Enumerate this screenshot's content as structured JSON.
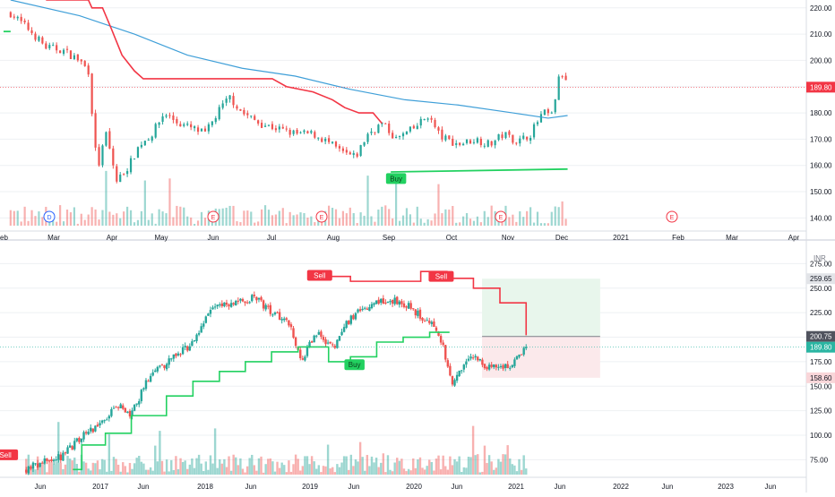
{
  "colors": {
    "up": "#26a69a",
    "down": "#ef5350",
    "stop_sell": "#f23645",
    "stop_buy": "#22d160",
    "ma": "#3f9fd8",
    "last_price": "#f23645",
    "badge_buy": "#22d160",
    "badge_sell": "#f23645",
    "grid": "#eef0f3",
    "axis_text": "#131722",
    "divider": "#d9dce3",
    "target_zone": "#e8f6ec",
    "stop_zone": "#fbe9eb",
    "entry_line": "#7a7d86",
    "target_badge": "#e2e4e8",
    "stop_badge": "#f9d6d9",
    "entry_badge": "#50535e"
  },
  "chart_data": [
    {
      "type": "candlestick",
      "pane": "top",
      "interval": "daily",
      "x_tick_labels": [
        "eb",
        "Mar",
        "Apr",
        "May",
        "Jun",
        "Jul",
        "Aug",
        "Sep",
        "Oct",
        "Nov",
        "Dec",
        "2021",
        "Feb",
        "Mar",
        "Apr"
      ],
      "y_tick_labels": [
        "220.00",
        "210.00",
        "200.00",
        "190.00",
        "180.00",
        "170.00",
        "160.00",
        "150.00",
        "140.00"
      ],
      "ylim": [
        135,
        223
      ],
      "last_price": "189.80",
      "close_path": [
        [
          "2020-02-05",
          218
        ],
        [
          "2020-02-15",
          212
        ],
        [
          "2020-02-25",
          205
        ],
        [
          "2020-03-05",
          204
        ],
        [
          "2020-03-15",
          200
        ],
        [
          "2020-03-20",
          196
        ],
        [
          "2020-03-25",
          158
        ],
        [
          "2020-03-30",
          172
        ],
        [
          "2020-04-05",
          154
        ],
        [
          "2020-04-12",
          160
        ],
        [
          "2020-04-18",
          168
        ],
        [
          "2020-04-25",
          172
        ],
        [
          "2020-05-02",
          180
        ],
        [
          "2020-05-10",
          176
        ],
        [
          "2020-05-18",
          174
        ],
        [
          "2020-05-25",
          172
        ],
        [
          "2020-06-02",
          181
        ],
        [
          "2020-06-08",
          186
        ],
        [
          "2020-06-15",
          180
        ],
        [
          "2020-06-25",
          176
        ],
        [
          "2020-07-05",
          174
        ],
        [
          "2020-07-15",
          172
        ],
        [
          "2020-07-25",
          172
        ],
        [
          "2020-08-02",
          169
        ],
        [
          "2020-08-10",
          165
        ],
        [
          "2020-08-18",
          163
        ],
        [
          "2020-08-25",
          172
        ],
        [
          "2020-09-02",
          176
        ],
        [
          "2020-09-10",
          170
        ],
        [
          "2020-09-20",
          174
        ],
        [
          "2020-09-28",
          179
        ],
        [
          "2020-10-05",
          171
        ],
        [
          "2020-10-15",
          168
        ],
        [
          "2020-10-25",
          170
        ],
        [
          "2020-11-02",
          168
        ],
        [
          "2020-11-10",
          172
        ],
        [
          "2020-11-18",
          169
        ],
        [
          "2020-11-25",
          172
        ],
        [
          "2020-12-02",
          180
        ],
        [
          "2020-12-07",
          179
        ],
        [
          "2020-12-12",
          196
        ],
        [
          "2020-12-16",
          190
        ]
      ],
      "moving_average": [
        [
          "2020-02-05",
          223
        ],
        [
          "2020-03-15",
          217
        ],
        [
          "2020-04-15",
          210
        ],
        [
          "2020-05-15",
          202
        ],
        [
          "2020-06-15",
          197
        ],
        [
          "2020-07-15",
          194
        ],
        [
          "2020-08-15",
          189
        ],
        [
          "2020-09-15",
          185
        ],
        [
          "2020-10-15",
          183
        ],
        [
          "2020-11-15",
          180
        ],
        [
          "2020-12-05",
          178
        ],
        [
          "2020-12-16",
          179
        ]
      ],
      "trailing_stop_sell": [
        [
          "2020-02-25",
          223
        ],
        [
          "2020-03-20",
          223
        ],
        [
          "2020-03-22",
          220
        ],
        [
          "2020-03-28",
          220
        ],
        [
          "2020-04-02",
          212
        ],
        [
          "2020-04-08",
          202
        ],
        [
          "2020-04-15",
          196
        ],
        [
          "2020-04-20",
          193
        ],
        [
          "2020-06-15",
          193
        ],
        [
          "2020-07-02",
          193
        ],
        [
          "2020-07-10",
          190
        ],
        [
          "2020-07-25",
          188
        ],
        [
          "2020-08-05",
          185
        ],
        [
          "2020-08-12",
          182
        ],
        [
          "2020-08-20",
          180
        ],
        [
          "2020-08-28",
          180
        ],
        [
          "2020-09-02",
          176
        ]
      ],
      "trailing_stop_buy": [
        [
          "2020-02-01",
          211
        ],
        [
          "2020-02-05",
          211
        ],
        [
          "2020-09-07",
          157.5
        ],
        [
          "2020-12-16",
          158.6
        ]
      ],
      "signals": [
        {
          "date": "2020-09-10",
          "value": 155,
          "label": "Buy"
        }
      ],
      "events": [
        "D",
        "E",
        "E",
        "E",
        "E",
        "E"
      ]
    },
    {
      "type": "candlestick",
      "pane": "bottom",
      "interval": "weekly",
      "x_tick_labels": [
        "Jun",
        "2017",
        "Jun",
        "2018",
        "Jun",
        "2019",
        "Jun",
        "2020",
        "Jun",
        "2021",
        "Jun",
        "2022",
        "Jun",
        "2023",
        "Jun"
      ],
      "y_tick_labels": [
        "275.00",
        "250.00",
        "225.00",
        "200.00",
        "175.00",
        "150.00",
        "125.00",
        "100.00",
        "75.00"
      ],
      "currency": "INR",
      "ylim": [
        58,
        290
      ],
      "last_price": "189.80",
      "close_path": [
        [
          "2016-03-01",
          66
        ],
        [
          "2016-07-01",
          78
        ],
        [
          "2016-09-01",
          96
        ],
        [
          "2016-11-01",
          110
        ],
        [
          "2017-01-15",
          130
        ],
        [
          "2017-03-01",
          120
        ],
        [
          "2017-05-01",
          160
        ],
        [
          "2017-08-01",
          180
        ],
        [
          "2017-10-01",
          195
        ],
        [
          "2017-12-01",
          230
        ],
        [
          "2018-03-01",
          236
        ],
        [
          "2018-05-01",
          240
        ],
        [
          "2018-07-01",
          225
        ],
        [
          "2018-09-01",
          215
        ],
        [
          "2018-10-15",
          175
        ],
        [
          "2018-12-01",
          205
        ],
        [
          "2019-02-01",
          190
        ],
        [
          "2019-04-01",
          220
        ],
        [
          "2019-06-01",
          232
        ],
        [
          "2019-08-01",
          238
        ],
        [
          "2019-10-01",
          235
        ],
        [
          "2019-12-01",
          222
        ],
        [
          "2020-02-01",
          205
        ],
        [
          "2020-03-20",
          155
        ],
        [
          "2020-05-01",
          172
        ],
        [
          "2020-06-01",
          178
        ],
        [
          "2020-08-01",
          168
        ],
        [
          "2020-10-01",
          170
        ],
        [
          "2020-12-01",
          190
        ]
      ],
      "trailing_stop_buy": [
        [
          "2016-08-10",
          65
        ],
        [
          "2016-09-10",
          90
        ],
        [
          "2016-12-01",
          102
        ],
        [
          "2017-03-01",
          120
        ],
        [
          "2017-07-01",
          140
        ],
        [
          "2017-10-01",
          155
        ],
        [
          "2018-01-01",
          165
        ],
        [
          "2018-04-01",
          175
        ],
        [
          "2018-07-01",
          185
        ],
        [
          "2018-10-01",
          190
        ],
        [
          "2019-01-15",
          175
        ],
        [
          "2019-04-01",
          180
        ],
        [
          "2019-07-01",
          195
        ],
        [
          "2019-10-01",
          200
        ],
        [
          "2020-01-01",
          205
        ],
        [
          "2020-03-10",
          205
        ]
      ],
      "trailing_stop_sell": [
        [
          "2018-12-15",
          265
        ],
        [
          "2019-01-15",
          262
        ],
        [
          "2019-04-01",
          257
        ],
        [
          "2019-07-01",
          257
        ],
        [
          "2019-12-01",
          267
        ],
        [
          "2020-03-01",
          260
        ],
        [
          "2020-06-01",
          250
        ],
        [
          "2020-09-01",
          235
        ],
        [
          "2020-12-01",
          202
        ]
      ],
      "signals": [
        {
          "date": "2015-12-20",
          "value": 80,
          "label": "Sell"
        },
        {
          "date": "2018-12-15",
          "value": 263,
          "label": "Sell"
        },
        {
          "date": "2019-04-15",
          "value": 172,
          "label": "Buy"
        },
        {
          "date": "2020-02-10",
          "value": 262,
          "label": "Sell"
        }
      ],
      "position": {
        "entry": 200.75,
        "target": 259.65,
        "stop": 158.6,
        "from": "2020-07-01",
        "to": "2021-08-15"
      },
      "price_labels": [
        "259.65",
        "200.75",
        "189.80",
        "158.60"
      ]
    }
  ]
}
